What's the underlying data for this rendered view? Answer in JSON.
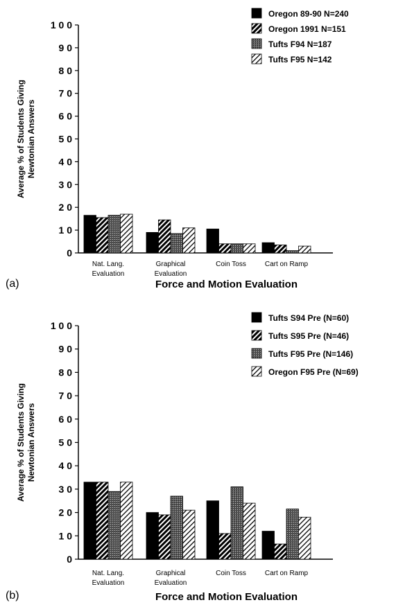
{
  "chart_data": [
    {
      "type": "bar",
      "panel_label": "(a)",
      "xlabel": "Force and Motion Evaluation",
      "ylabel": [
        "Average % of Students Giving",
        "Newtonian Answers"
      ],
      "ylim": [
        0,
        100
      ],
      "yticks": [
        "0",
        "1 0",
        "2 0",
        "3 0",
        "4 0",
        "5 0",
        "6 0",
        "7 0",
        "8 0",
        "9 0",
        "1 0 0"
      ],
      "categories": [
        [
          "Nat. Lang.",
          "Evaluation"
        ],
        [
          "Graphical",
          "Evaluation"
        ],
        [
          "Coin Toss"
        ],
        [
          "Cart on Ramp"
        ]
      ],
      "legend_position": "top-right",
      "series": [
        {
          "name": "Oregon  89-90  N=240",
          "pattern": "solid",
          "values": [
            16.5,
            9,
            10.5,
            4.5
          ]
        },
        {
          "name": "Oregon  1991  N=151",
          "pattern": "hatch-dark",
          "values": [
            15.5,
            14.5,
            4,
            3.5
          ]
        },
        {
          "name": "Tufts  F94  N=187",
          "pattern": "grid",
          "values": [
            16.5,
            8.5,
            4,
            1
          ]
        },
        {
          "name": "Tufts  F95  N=142",
          "pattern": "hatch-light",
          "values": [
            17,
            11,
            4,
            3
          ]
        }
      ]
    },
    {
      "type": "bar",
      "panel_label": "(b)",
      "xlabel": "Force and Motion Evaluation",
      "ylabel": [
        "Average % of Students Giving",
        "Newtonian Answers"
      ],
      "ylim": [
        0,
        100
      ],
      "yticks": [
        "0",
        "1 0",
        "2 0",
        "3 0",
        "4 0",
        "5 0",
        "6 0",
        "7 0",
        "8 0",
        "9 0",
        "1 0 0"
      ],
      "categories": [
        [
          "Nat. Lang.",
          "Evaluation"
        ],
        [
          "Graphical",
          "Evaluation"
        ],
        [
          "Coin Toss"
        ],
        [
          "Cart on Ramp"
        ]
      ],
      "legend_position": "top-right",
      "series": [
        {
          "name": "Tufts  S94  Pre  (N=60)",
          "pattern": "solid",
          "values": [
            33,
            20,
            25,
            12
          ]
        },
        {
          "name": "Tufts  S95  Pre  (N=46)",
          "pattern": "hatch-dark",
          "values": [
            33,
            19,
            11,
            6.5
          ]
        },
        {
          "name": "Tufts  F95  Pre  (N=146)",
          "pattern": "grid",
          "values": [
            29,
            27,
            31,
            21.5
          ]
        },
        {
          "name": "Oregon  F95  Pre  (N=69)",
          "pattern": "hatch-light",
          "values": [
            33,
            21,
            24,
            18
          ]
        }
      ]
    }
  ]
}
